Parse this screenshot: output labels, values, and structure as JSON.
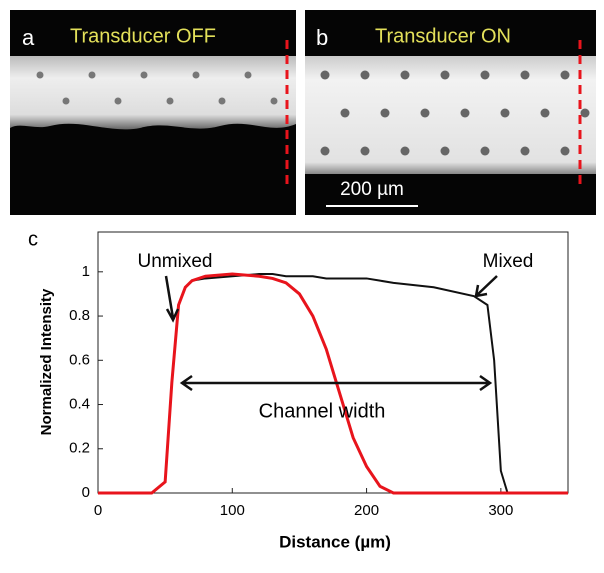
{
  "panels": [
    {
      "label": "a",
      "title": "Transducer OFF"
    },
    {
      "label": "b",
      "title": "Transducer ON"
    }
  ],
  "scale_bar": "200 µm",
  "chart_data": {
    "type": "line",
    "panel_label": "c",
    "xlabel": "Distance (µm)",
    "ylabel": "Normalized Intensity",
    "x": [
      0,
      40,
      50,
      55,
      60,
      65,
      70,
      80,
      100,
      120,
      130,
      140,
      150,
      160,
      170,
      180,
      190,
      200,
      210,
      220,
      250,
      280,
      290,
      295,
      300,
      305,
      350
    ],
    "series": [
      {
        "name": "Unmixed",
        "color": "#e8141c",
        "values": [
          0,
          0,
          0.05,
          0.5,
          0.85,
          0.93,
          0.96,
          0.98,
          0.99,
          0.98,
          0.97,
          0.95,
          0.9,
          0.8,
          0.65,
          0.45,
          0.25,
          0.12,
          0.03,
          0,
          0,
          0,
          0,
          0,
          0,
          0,
          0
        ]
      },
      {
        "name": "Mixed",
        "color": "#111111",
        "values": [
          0,
          0,
          0.05,
          0.5,
          0.85,
          0.93,
          0.96,
          0.97,
          0.98,
          0.99,
          0.99,
          0.98,
          0.98,
          0.98,
          0.97,
          0.97,
          0.97,
          0.97,
          0.96,
          0.95,
          0.93,
          0.89,
          0.85,
          0.6,
          0.1,
          0,
          0
        ]
      }
    ],
    "annotation": "Channel width",
    "xlim": [
      0,
      350
    ],
    "xticks": [
      0,
      100,
      200,
      300
    ],
    "ylim": [
      0,
      1.18
    ],
    "yticks": [
      0,
      0.2,
      0.4,
      0.6,
      0.8,
      1
    ]
  }
}
